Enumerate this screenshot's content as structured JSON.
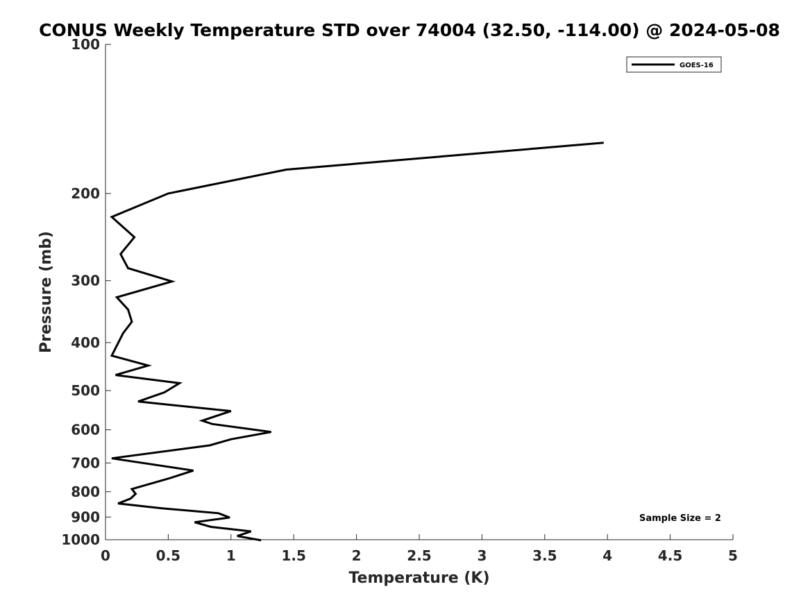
{
  "chart_data": {
    "type": "line",
    "title": "CONUS Weekly Temperature STD over 74004 (32.50, -114.00) @ 2024-05-08",
    "xlabel": "Temperature (K)",
    "ylabel": "Pressure (mb)",
    "xlim": [
      0,
      5
    ],
    "ylim": [
      100,
      1000
    ],
    "y_scale": "log",
    "y_reversed": true,
    "grid": false,
    "legend_position": "top-right",
    "x_ticks": [
      0,
      0.5,
      1,
      1.5,
      2,
      2.5,
      3,
      3.5,
      4,
      4.5,
      5
    ],
    "x_tick_labels": [
      "0",
      "0.5",
      "1",
      "1.5",
      "2",
      "2.5",
      "3",
      "3.5",
      "4",
      "4.5",
      "5"
    ],
    "y_ticks": [
      100,
      200,
      300,
      400,
      500,
      600,
      700,
      800,
      900,
      1000
    ],
    "y_tick_labels": [
      "100",
      "200",
      "300",
      "400",
      "500",
      "600",
      "700",
      "800",
      "900",
      "1000"
    ],
    "series": [
      {
        "name": "GOES-16",
        "color": "#000000",
        "points": [
          [
            3.97,
            158
          ],
          [
            1.44,
            179
          ],
          [
            0.5,
            200
          ],
          [
            0.05,
            223
          ],
          [
            0.23,
            245
          ],
          [
            0.12,
            265
          ],
          [
            0.18,
            283
          ],
          [
            0.53,
            301
          ],
          [
            0.09,
            324
          ],
          [
            0.18,
            343
          ],
          [
            0.21,
            363
          ],
          [
            0.14,
            383
          ],
          [
            0.05,
            425
          ],
          [
            0.34,
            445
          ],
          [
            0.08,
            465
          ],
          [
            0.59,
            483
          ],
          [
            0.47,
            504
          ],
          [
            0.26,
            526
          ],
          [
            1.0,
            550
          ],
          [
            0.77,
            575
          ],
          [
            0.85,
            584
          ],
          [
            1.32,
            606
          ],
          [
            1.0,
            627
          ],
          [
            0.83,
            645
          ],
          [
            0.05,
            685
          ],
          [
            0.7,
            725
          ],
          [
            0.5,
            753
          ],
          [
            0.21,
            790
          ],
          [
            0.24,
            808
          ],
          [
            0.2,
            826
          ],
          [
            0.1,
            845
          ],
          [
            0.45,
            864
          ],
          [
            0.9,
            884
          ],
          [
            0.99,
            902
          ],
          [
            0.71,
            922
          ],
          [
            0.84,
            942
          ],
          [
            1.16,
            962
          ],
          [
            1.05,
            983
          ],
          [
            1.24,
            1003
          ]
        ]
      }
    ],
    "annotation": "Sample Size = 2"
  }
}
